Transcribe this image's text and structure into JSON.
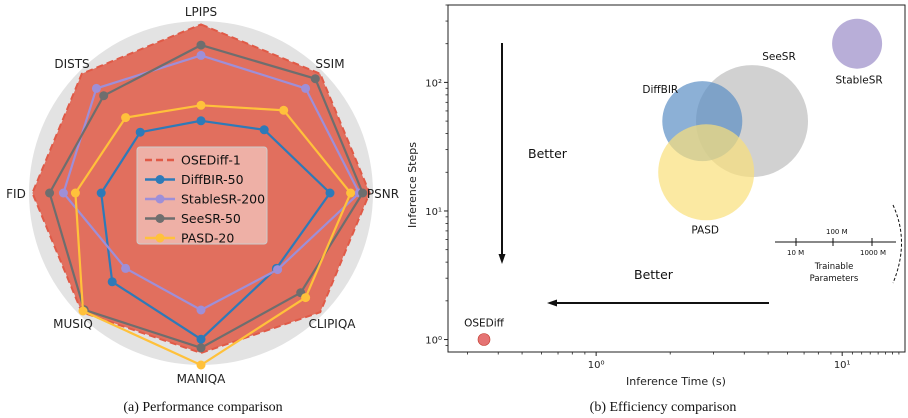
{
  "chart_data": [
    {
      "type": "radar",
      "caption": "(a) Performance comparison",
      "axes": [
        "LPIPS",
        "SSIM",
        "PSNR",
        "CLIPIQA",
        "MANIQA",
        "MUSIQ",
        "FID",
        "DISTS"
      ],
      "series": [
        {
          "name": "OSEDiff-1",
          "color": "#e05a47",
          "style": "dashed",
          "filled": true,
          "values": [
            0.98,
            0.98,
            0.98,
            0.98,
            0.93,
            0.98,
            0.98,
            0.98
          ]
        },
        {
          "name": "DiffBIR-50",
          "color": "#2e7ab8",
          "values": [
            0.42,
            0.52,
            0.75,
            0.62,
            0.85,
            0.73,
            0.58,
            0.5
          ]
        },
        {
          "name": "StableSR-200",
          "color": "#9e8fd8",
          "values": [
            0.8,
            0.86,
            0.92,
            0.63,
            0.68,
            0.62,
            0.8,
            0.86
          ]
        },
        {
          "name": "SeeSR-50",
          "color": "#6e6e6e",
          "values": [
            0.86,
            0.94,
            0.94,
            0.82,
            0.9,
            0.96,
            0.88,
            0.8
          ]
        },
        {
          "name": "PASD-20",
          "color": "#ffc13b",
          "values": [
            0.51,
            0.68,
            0.87,
            0.86,
            1.0,
            0.97,
            0.73,
            0.62
          ]
        }
      ]
    },
    {
      "type": "scatter",
      "caption": "(b) Efficiency comparison",
      "xlabel": "Inference Time (s)",
      "ylabel": "Inference Steps",
      "xscale": "log",
      "yscale": "log",
      "xlim": [
        0.25,
        18
      ],
      "ylim": [
        0.8,
        400
      ],
      "x_ticks": [
        {
          "value": 1,
          "label": "10⁰"
        },
        {
          "value": 10,
          "label": "10¹"
        }
      ],
      "y_ticks": [
        {
          "value": 1,
          "label": "10⁰"
        },
        {
          "value": 10,
          "label": "10¹"
        },
        {
          "value": 100,
          "label": "10²"
        }
      ],
      "points": [
        {
          "name": "OSEDiff",
          "x": 0.35,
          "y": 1,
          "color": "#e05a5a"
        },
        {
          "name": "DiffBIR",
          "x": 2.7,
          "y": 50,
          "color": "#5b8fc4"
        },
        {
          "name": "SeeSR",
          "x": 4.3,
          "y": 50,
          "color": "#bdbdbd"
        },
        {
          "name": "PASD",
          "x": 2.8,
          "y": 20,
          "color": "#f9e07a"
        },
        {
          "name": "StableSR",
          "x": 11.5,
          "y": 200,
          "color": "#9a8cc8"
        }
      ],
      "annotations": {
        "better_vertical": "Better",
        "better_horizontal": "Better"
      },
      "size_legend": {
        "title_line1": "Trainable",
        "title_line2": "Parameters",
        "labels": [
          "10 M",
          "100 M",
          "1000 M"
        ]
      }
    }
  ]
}
